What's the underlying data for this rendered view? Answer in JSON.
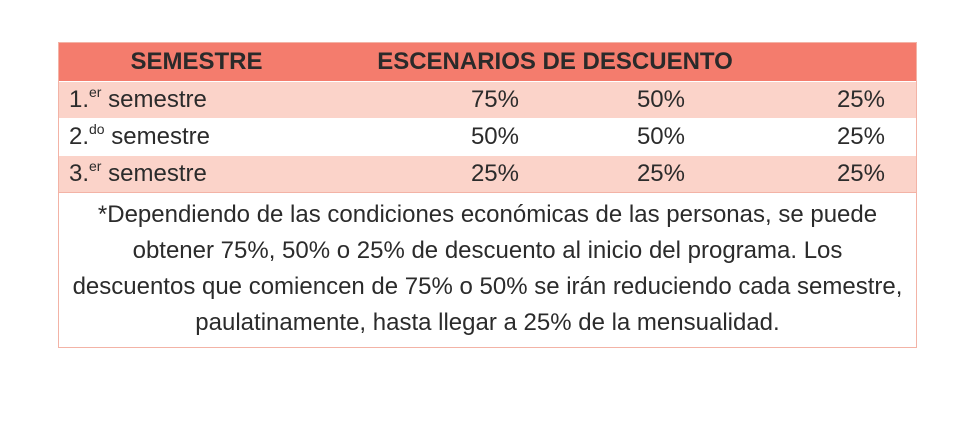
{
  "header": {
    "semestre": "SEMESTRE",
    "escenarios": "ESCENARIOS DE DESCUENTO"
  },
  "rows": [
    {
      "num": "1.",
      "sup": "er",
      "label": "semestre",
      "v1": "75%",
      "v2": "50%",
      "v3": "25%"
    },
    {
      "num": "2.",
      "sup": "do",
      "label": "semestre",
      "v1": "50%",
      "v2": "50%",
      "v3": "25%"
    },
    {
      "num": "3.",
      "sup": "er",
      "label": "semestre",
      "v1": "25%",
      "v2": "25%",
      "v3": "25%"
    }
  ],
  "note": "*Dependiendo de las condiciones económicas de las personas, se puede obtener 75%, 50% o 25% de descuento al inicio del programa. Los descuentos que comiencen de 75% o 50% se irán reduciendo cada semestre, paulatinamente, hasta llegar a 25% de la mensualidad.",
  "colors": {
    "header_bg": "#f47c6d",
    "row_shaded_bg": "#fbd3c9",
    "border": "#f3b3a6"
  }
}
